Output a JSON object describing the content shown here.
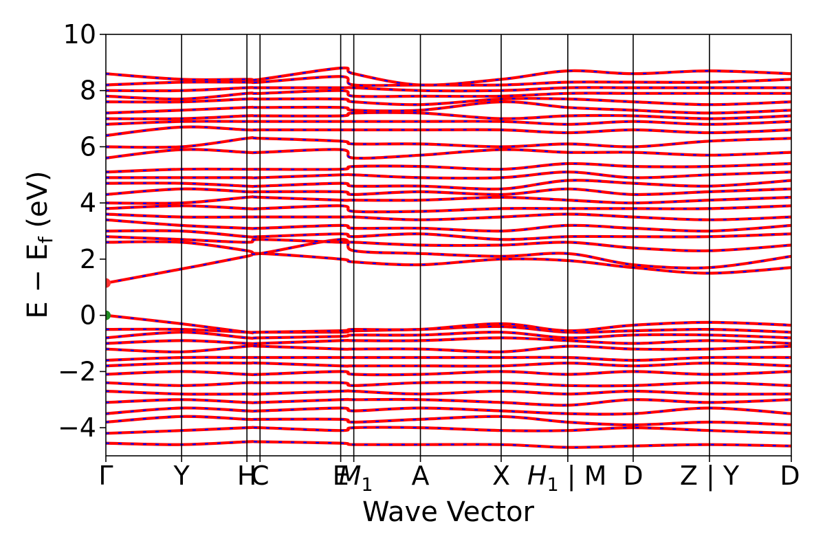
{
  "chart_data": {
    "type": "line",
    "title": "",
    "xlabel": "Wave Vector",
    "ylabel": "E − E_f (eV)",
    "ylabel_parts": {
      "main": "E − E",
      "sub": "f",
      "unit": " (eV)"
    },
    "ylim": [
      -5,
      10
    ],
    "y_ticks": [
      -4,
      -2,
      0,
      2,
      4,
      6,
      8,
      10
    ],
    "y_tick_labels": [
      "−4",
      "−2",
      "0",
      "2",
      "4",
      "6",
      "8",
      "10"
    ],
    "x_range": [
      0,
      1
    ],
    "high_symmetry_points": [
      {
        "label": "Γ",
        "x": 0.0
      },
      {
        "label": "Y",
        "x": 0.1105
      },
      {
        "label": "H",
        "x": 0.2058
      },
      {
        "label": "C",
        "x": 0.2249
      },
      {
        "label": "E",
        "x": 0.3426
      },
      {
        "label": "M1",
        "x": 0.3617
      },
      {
        "label": "A",
        "x": 0.4589
      },
      {
        "label": "X",
        "x": 0.5767
      },
      {
        "label": "H1 | M",
        "x": 0.6739
      },
      {
        "label": "D",
        "x": 0.7693
      },
      {
        "label": "Z | Y",
        "x": 0.8806
      },
      {
        "label": "D",
        "x": 1.0
      }
    ],
    "tick_labels_text": [
      "Γ",
      "Y",
      "H",
      "C",
      "E",
      "M",
      "1",
      "A",
      "X",
      "H",
      "1",
      "| M",
      "D",
      "Z | Y",
      "D"
    ],
    "series": [
      {
        "values": [
          -4.55,
          -4.6,
          -4.5,
          -4.5,
          -4.55,
          -4.6,
          -4.6,
          -4.6,
          -4.7,
          -4.65,
          -4.6,
          -4.65
        ]
      },
      {
        "values": [
          -4.2,
          -4.1,
          -4.0,
          -4.0,
          -4.1,
          -4.0,
          -4.0,
          -4.1,
          -4.1,
          -4.0,
          -4.1,
          -4.2
        ]
      },
      {
        "values": [
          -3.8,
          -3.6,
          -3.7,
          -3.7,
          -3.7,
          -3.8,
          -3.7,
          -3.6,
          -3.8,
          -3.9,
          -3.8,
          -3.9
        ]
      },
      {
        "values": [
          -3.5,
          -3.3,
          -3.4,
          -3.4,
          -3.3,
          -3.4,
          -3.3,
          -3.4,
          -3.5,
          -3.5,
          -3.3,
          -3.5
        ]
      },
      {
        "values": [
          -3.1,
          -3.0,
          -3.1,
          -3.1,
          -3.0,
          -3.0,
          -3.0,
          -3.1,
          -3.2,
          -3.0,
          -3.1,
          -3.0
        ]
      },
      {
        "values": [
          -2.7,
          -2.8,
          -2.8,
          -2.8,
          -2.7,
          -2.7,
          -2.8,
          -2.7,
          -2.8,
          -2.7,
          -2.8,
          -2.8
        ]
      },
      {
        "values": [
          -2.4,
          -2.5,
          -2.4,
          -2.4,
          -2.4,
          -2.5,
          -2.4,
          -2.4,
          -2.5,
          -2.5,
          -2.4,
          -2.5
        ]
      },
      {
        "values": [
          -2.1,
          -2.0,
          -2.1,
          -2.1,
          -2.0,
          -2.1,
          -2.1,
          -2.0,
          -2.1,
          -2.0,
          -2.1,
          -2.0
        ]
      },
      {
        "values": [
          -1.8,
          -1.7,
          -1.7,
          -1.7,
          -1.8,
          -1.8,
          -1.8,
          -1.8,
          -1.7,
          -1.8,
          -1.7,
          -1.8
        ]
      },
      {
        "values": [
          -1.6,
          -1.5,
          -1.5,
          -1.5,
          -1.5,
          -1.5,
          -1.5,
          -1.5,
          -1.5,
          -1.6,
          -1.5,
          -1.5
        ]
      },
      {
        "values": [
          -1.2,
          -1.3,
          -1.1,
          -1.1,
          -1.2,
          -1.2,
          -1.2,
          -1.3,
          -1.1,
          -1.2,
          -1.2,
          -1.1
        ]
      },
      {
        "values": [
          -1.0,
          -0.9,
          -1.0,
          -1.0,
          -0.9,
          -0.9,
          -0.9,
          -0.8,
          -0.9,
          -1.0,
          -0.9,
          -1.0
        ]
      },
      {
        "values": [
          -0.8,
          -0.6,
          -0.8,
          -0.8,
          -0.75,
          -0.7,
          -0.7,
          -0.6,
          -0.8,
          -0.7,
          -0.7,
          -0.8
        ]
      },
      {
        "values": [
          -0.5,
          -0.5,
          -0.6,
          -0.6,
          -0.6,
          -0.55,
          -0.5,
          -0.4,
          -0.6,
          -0.55,
          -0.5,
          -0.6
        ]
      },
      {
        "values": [
          0.0,
          -0.3,
          -0.6,
          -0.6,
          -0.55,
          -0.5,
          -0.5,
          -0.3,
          -0.55,
          -0.35,
          -0.25,
          -0.35
        ]
      },
      {
        "values": [
          1.15,
          1.65,
          2.1,
          2.2,
          2.0,
          1.9,
          1.8,
          2.0,
          1.95,
          1.7,
          1.5,
          1.7
        ]
      },
      {
        "values": [
          2.6,
          2.6,
          2.3,
          2.2,
          2.7,
          2.3,
          2.2,
          2.1,
          2.2,
          1.8,
          1.7,
          2.1
        ]
      },
      {
        "values": [
          2.8,
          2.7,
          2.6,
          2.7,
          2.6,
          2.6,
          2.5,
          2.5,
          2.6,
          2.4,
          2.3,
          2.5
        ]
      },
      {
        "values": [
          3.0,
          3.0,
          2.8,
          2.8,
          2.9,
          2.8,
          2.9,
          2.7,
          2.8,
          2.8,
          2.8,
          2.9
        ]
      },
      {
        "values": [
          3.4,
          3.2,
          3.1,
          3.1,
          3.2,
          3.1,
          3.1,
          3.0,
          3.2,
          3.1,
          3.0,
          3.2
        ]
      },
      {
        "values": [
          3.6,
          3.5,
          3.5,
          3.5,
          3.5,
          3.5,
          3.4,
          3.5,
          3.6,
          3.5,
          3.4,
          3.5
        ]
      },
      {
        "values": [
          3.8,
          3.9,
          3.8,
          3.8,
          3.9,
          3.7,
          3.7,
          3.8,
          3.8,
          3.8,
          3.8,
          3.9
        ]
      },
      {
        "values": [
          4.0,
          4.0,
          4.2,
          4.2,
          4.1,
          4.1,
          4.1,
          4.2,
          4.1,
          4.0,
          4.1,
          4.2
        ]
      },
      {
        "values": [
          4.3,
          4.5,
          4.4,
          4.4,
          4.4,
          4.3,
          4.4,
          4.3,
          4.5,
          4.3,
          4.4,
          4.5
        ]
      },
      {
        "values": [
          4.7,
          4.7,
          4.6,
          4.6,
          4.7,
          4.6,
          4.6,
          4.5,
          4.8,
          4.7,
          4.6,
          4.8
        ]
      },
      {
        "values": [
          4.9,
          4.9,
          4.9,
          4.9,
          5.0,
          5.0,
          4.9,
          4.9,
          5.1,
          4.9,
          5.0,
          5.1
        ]
      },
      {
        "values": [
          5.1,
          5.2,
          5.2,
          5.2,
          5.2,
          5.3,
          5.3,
          5.2,
          5.4,
          5.3,
          5.3,
          5.4
        ]
      },
      {
        "values": [
          5.6,
          5.9,
          5.8,
          5.8,
          5.9,
          5.6,
          5.7,
          5.9,
          5.8,
          5.8,
          5.7,
          5.8
        ]
      },
      {
        "values": [
          6.0,
          6.0,
          6.3,
          6.3,
          6.2,
          6.1,
          6.1,
          6.0,
          6.1,
          6.0,
          6.2,
          6.3
        ]
      },
      {
        "values": [
          6.4,
          6.7,
          6.6,
          6.6,
          6.6,
          6.6,
          6.6,
          6.6,
          6.5,
          6.6,
          6.5,
          6.6
        ]
      },
      {
        "values": [
          6.8,
          6.9,
          6.9,
          6.9,
          6.9,
          6.9,
          6.9,
          6.9,
          6.8,
          6.9,
          6.8,
          6.9
        ]
      },
      {
        "values": [
          7.0,
          7.0,
          7.1,
          7.1,
          7.1,
          7.2,
          7.2,
          7.0,
          7.1,
          7.1,
          7.0,
          7.1
        ]
      },
      {
        "values": [
          7.2,
          7.3,
          7.4,
          7.4,
          7.4,
          7.3,
          7.3,
          7.6,
          7.4,
          7.3,
          7.2,
          7.3
        ]
      },
      {
        "values": [
          7.6,
          7.6,
          7.7,
          7.7,
          7.7,
          7.6,
          7.5,
          7.7,
          7.7,
          7.6,
          7.5,
          7.6
        ]
      },
      {
        "values": [
          7.8,
          7.7,
          7.9,
          7.9,
          8.0,
          7.8,
          7.8,
          7.8,
          7.9,
          7.9,
          7.9,
          7.9
        ]
      },
      {
        "values": [
          8.0,
          8.0,
          8.1,
          8.1,
          8.1,
          8.1,
          8.0,
          8.0,
          8.1,
          8.1,
          8.1,
          8.1
        ]
      },
      {
        "values": [
          8.2,
          8.3,
          8.3,
          8.3,
          8.5,
          8.2,
          8.2,
          8.2,
          8.3,
          8.3,
          8.3,
          8.4
        ]
      },
      {
        "values": [
          8.6,
          8.4,
          8.4,
          8.4,
          8.8,
          8.6,
          8.2,
          8.4,
          8.7,
          8.6,
          8.7,
          8.6
        ]
      }
    ],
    "band_style": {
      "primary_color": "#ff0000",
      "dash_color": "#0000ff"
    },
    "markers": [
      {
        "x": 0.0,
        "y": 1.15,
        "color": "#ff3333"
      },
      {
        "x": 0.0,
        "y": 0.0,
        "color": "#228b22"
      }
    ],
    "grid": false,
    "legend": "none"
  }
}
